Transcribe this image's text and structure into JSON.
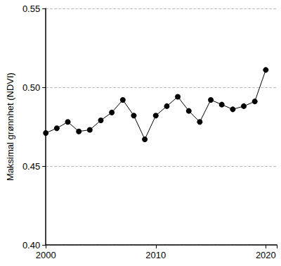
{
  "chart_data": {
    "type": "line",
    "y_label": "Maksimal grønnhet (NDVI)",
    "x": [
      2000,
      2001,
      2002,
      2003,
      2004,
      2005,
      2006,
      2007,
      2008,
      2009,
      2010,
      2011,
      2012,
      2013,
      2014,
      2015,
      2016,
      2017,
      2018,
      2019,
      2020
    ],
    "values": [
      0.471,
      0.474,
      0.478,
      0.472,
      0.473,
      0.479,
      0.484,
      0.492,
      0.482,
      0.467,
      0.482,
      0.488,
      0.494,
      0.485,
      0.478,
      0.492,
      0.489,
      0.486,
      0.488,
      0.491,
      0.511
    ],
    "color": "#000000",
    "marker": "circle",
    "xlim": [
      2000,
      2021
    ],
    "xticks": [
      2000,
      2010,
      2020
    ],
    "ylim": [
      0.4,
      0.55
    ],
    "yticks": [
      {
        "value": 0.4,
        "label": "0.40"
      },
      {
        "value": 0.45,
        "label": "0.45"
      },
      {
        "value": 0.5,
        "label": "0.50"
      },
      {
        "value": 0.55,
        "label": "0.55"
      }
    ],
    "grid": true
  }
}
